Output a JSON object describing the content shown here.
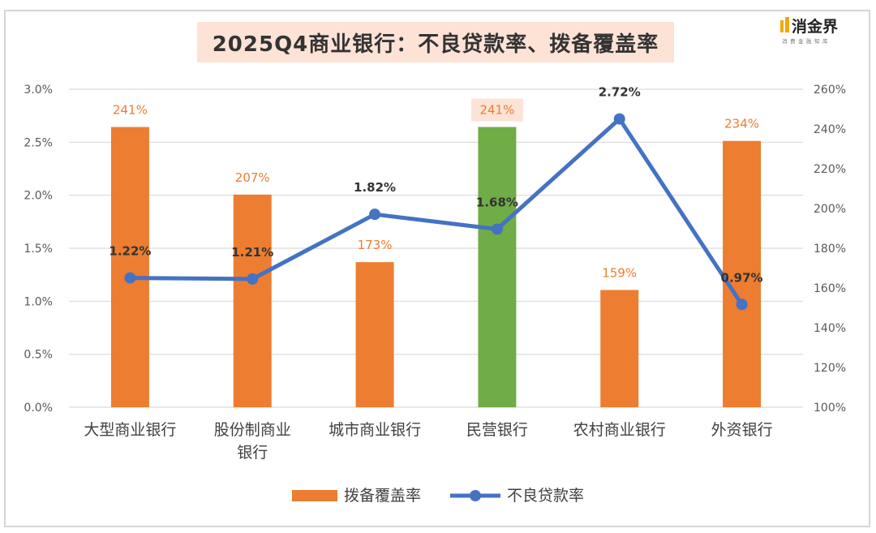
{
  "title": "2025Q4商业银行：不良贷款率、拨备覆盖率",
  "logo": {
    "name": "消金界",
    "tagline": "消费金融知库"
  },
  "colors": {
    "bar": "#ed7d31",
    "highlight_bar": "#70ad47",
    "line": "#4472c4",
    "title_bg": "#fde3d6",
    "highlight_label_bg": "#fde3d6"
  },
  "chart_data": {
    "type": "bar",
    "title": "2025Q4商业银行：不良贷款率、拨备覆盖率",
    "categories": [
      [
        "大型商业银行"
      ],
      [
        "股份制商业",
        "银行"
      ],
      [
        "城市商业银行"
      ],
      [
        "民营银行"
      ],
      [
        "农村商业银行"
      ],
      [
        "外资银行"
      ]
    ],
    "series": [
      {
        "name": "拨备覆盖率",
        "type": "bar",
        "axis": "right",
        "values": [
          241,
          207,
          173,
          241,
          159,
          234
        ],
        "labels": [
          "241%",
          "207%",
          "173%",
          "241%",
          "159%",
          "234%"
        ],
        "highlight_index": 3
      },
      {
        "name": "不良贷款率",
        "type": "line",
        "axis": "left",
        "values": [
          1.22,
          1.21,
          1.82,
          1.68,
          2.72,
          0.97
        ],
        "labels": [
          "1.22%",
          "1.21%",
          "1.82%",
          "1.68%",
          "2.72%",
          "0.97%"
        ]
      }
    ],
    "y_left": {
      "min": 0,
      "max": 3.0,
      "ticks": [
        "0.0%",
        "0.5%",
        "1.0%",
        "1.5%",
        "2.0%",
        "2.5%",
        "3.0%"
      ]
    },
    "y_right": {
      "min": 100,
      "max": 260,
      "ticks": [
        "100%",
        "120%",
        "140%",
        "160%",
        "180%",
        "200%",
        "220%",
        "240%",
        "260%"
      ]
    },
    "grid": true,
    "legend": "bottom"
  }
}
